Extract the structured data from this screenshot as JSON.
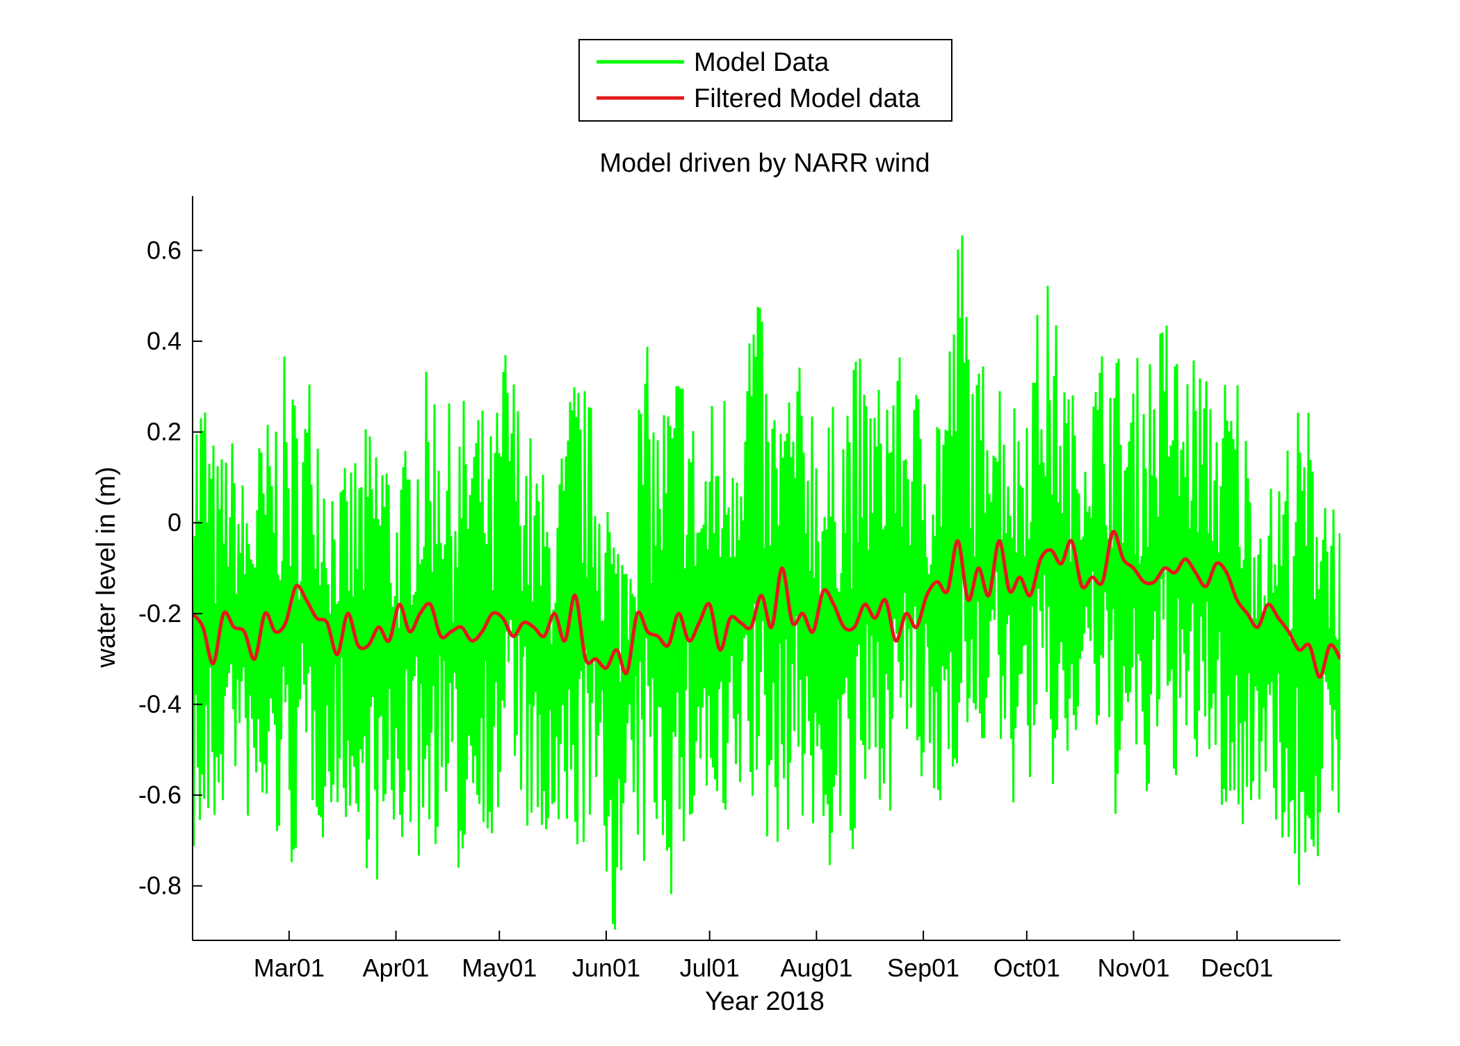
{
  "chart_data": {
    "type": "line",
    "title": "Model driven by NARR wind",
    "xlabel": "Year 2018",
    "ylabel": "water level in (m)",
    "xlim": [
      "2018-02-01",
      "2018-12-31"
    ],
    "ylim": [
      -0.92,
      0.72
    ],
    "grid": false,
    "legend_position": "top-center, above plot",
    "x_ticks": [
      {
        "date": "2018-03-01",
        "label": "Mar01"
      },
      {
        "date": "2018-04-01",
        "label": "Apr01"
      },
      {
        "date": "2018-05-01",
        "label": "May01"
      },
      {
        "date": "2018-06-01",
        "label": "Jun01"
      },
      {
        "date": "2018-07-01",
        "label": "Jul01"
      },
      {
        "date": "2018-08-01",
        "label": "Aug01"
      },
      {
        "date": "2018-09-01",
        "label": "Sep01"
      },
      {
        "date": "2018-10-01",
        "label": "Oct01"
      },
      {
        "date": "2018-11-01",
        "label": "Nov01"
      },
      {
        "date": "2018-12-01",
        "label": "Dec01"
      }
    ],
    "y_ticks": [
      {
        "value": 0.6,
        "label": "0.6"
      },
      {
        "value": 0.4,
        "label": "0.4"
      },
      {
        "value": 0.2,
        "label": "0.2"
      },
      {
        "value": 0,
        "label": "0"
      },
      {
        "value": -0.2,
        "label": "-0.2"
      },
      {
        "value": -0.4,
        "label": "-0.4"
      },
      {
        "value": -0.6,
        "label": "-0.6"
      },
      {
        "value": -0.8,
        "label": "-0.8"
      }
    ],
    "series": [
      {
        "name": "Model Data",
        "color": "#00ff00",
        "style": "oscillating envelope (approx. upper/lower extremes)",
        "x": [
          "2018-02-01",
          "2018-02-04",
          "2018-02-08",
          "2018-02-12",
          "2018-02-16",
          "2018-02-20",
          "2018-02-24",
          "2018-02-28",
          "2018-03-04",
          "2018-03-08",
          "2018-03-12",
          "2018-03-16",
          "2018-03-20",
          "2018-03-24",
          "2018-03-28",
          "2018-04-01",
          "2018-04-05",
          "2018-04-09",
          "2018-04-13",
          "2018-04-17",
          "2018-04-21",
          "2018-04-25",
          "2018-04-29",
          "2018-05-03",
          "2018-05-07",
          "2018-05-11",
          "2018-05-15",
          "2018-05-19",
          "2018-05-23",
          "2018-05-27",
          "2018-05-31",
          "2018-06-04",
          "2018-06-08",
          "2018-06-12",
          "2018-06-16",
          "2018-06-20",
          "2018-06-24",
          "2018-06-28",
          "2018-07-02",
          "2018-07-06",
          "2018-07-10",
          "2018-07-14",
          "2018-07-18",
          "2018-07-22",
          "2018-07-26",
          "2018-07-30",
          "2018-08-03",
          "2018-08-07",
          "2018-08-11",
          "2018-08-15",
          "2018-08-19",
          "2018-08-23",
          "2018-08-27",
          "2018-08-31",
          "2018-09-04",
          "2018-09-08",
          "2018-09-12",
          "2018-09-16",
          "2018-09-20",
          "2018-09-24",
          "2018-09-28",
          "2018-10-02",
          "2018-10-06",
          "2018-10-10",
          "2018-10-14",
          "2018-10-18",
          "2018-10-22",
          "2018-10-26",
          "2018-10-30",
          "2018-11-03",
          "2018-11-07",
          "2018-11-11",
          "2018-11-15",
          "2018-11-19",
          "2018-11-23",
          "2018-11-27",
          "2018-12-01",
          "2018-12-05",
          "2018-12-09",
          "2018-12-13",
          "2018-12-17",
          "2018-12-21",
          "2018-12-25",
          "2018-12-31"
        ],
        "upper": [
          0.3,
          0.37,
          0.15,
          0.21,
          0.1,
          0.2,
          0.26,
          0.38,
          0.28,
          0.39,
          0.2,
          0.1,
          0.18,
          0.22,
          0.28,
          0.1,
          0.21,
          0.33,
          0.36,
          0.25,
          0.29,
          0.29,
          0.2,
          0.44,
          0.27,
          0.19,
          0.09,
          0.18,
          0.38,
          0.28,
          0.23,
          0.0,
          0.12,
          0.43,
          0.26,
          0.35,
          0.42,
          0.13,
          0.3,
          0.34,
          0.38,
          0.61,
          0.31,
          0.32,
          0.35,
          0.36,
          0.25,
          0.27,
          0.39,
          0.36,
          0.32,
          0.43,
          0.31,
          0.32,
          0.33,
          0.39,
          0.72,
          0.32,
          0.42,
          0.36,
          0.29,
          0.4,
          0.57,
          0.45,
          0.3,
          0.25,
          0.4,
          0.44,
          0.31,
          0.39,
          0.42,
          0.49,
          0.36,
          0.4,
          0.31,
          0.34,
          0.37,
          0.16,
          0.06,
          0.13,
          0.25,
          0.28,
          0.22,
          0.02
        ],
        "lower": [
          -0.75,
          -0.8,
          -0.7,
          -0.55,
          -0.65,
          -0.77,
          -0.7,
          -0.82,
          -0.73,
          -0.65,
          -0.74,
          -0.6,
          -0.82,
          -0.75,
          -0.86,
          -0.74,
          -0.7,
          -0.8,
          -0.7,
          -0.81,
          -0.78,
          -0.62,
          -0.8,
          -0.55,
          -0.62,
          -0.82,
          -0.75,
          -0.84,
          -0.76,
          -0.7,
          -0.84,
          -0.93,
          -0.73,
          -0.8,
          -0.7,
          -0.85,
          -0.78,
          -0.6,
          -0.75,
          -0.83,
          -0.62,
          -0.69,
          -0.75,
          -0.71,
          -0.64,
          -0.72,
          -0.83,
          -0.7,
          -0.82,
          -0.7,
          -0.61,
          -0.65,
          -0.52,
          -0.62,
          -0.76,
          -0.55,
          -0.55,
          -0.6,
          -0.44,
          -0.58,
          -0.65,
          -0.58,
          -0.64,
          -0.6,
          -0.57,
          -0.35,
          -0.55,
          -0.67,
          -0.55,
          -0.69,
          -0.62,
          -0.52,
          -0.63,
          -0.59,
          -0.55,
          -0.67,
          -0.76,
          -0.68,
          -0.56,
          -0.69,
          -0.88,
          -0.8,
          -0.75,
          -0.66
        ]
      },
      {
        "name": "Filtered Model data",
        "color": "#e31a1c",
        "x": [
          "2018-02-01",
          "2018-02-04",
          "2018-02-07",
          "2018-02-10",
          "2018-02-13",
          "2018-02-16",
          "2018-02-19",
          "2018-02-22",
          "2018-02-25",
          "2018-02-28",
          "2018-03-03",
          "2018-03-06",
          "2018-03-09",
          "2018-03-12",
          "2018-03-15",
          "2018-03-18",
          "2018-03-21",
          "2018-03-24",
          "2018-03-27",
          "2018-03-30",
          "2018-04-02",
          "2018-04-05",
          "2018-04-08",
          "2018-04-11",
          "2018-04-14",
          "2018-04-17",
          "2018-04-20",
          "2018-04-23",
          "2018-04-26",
          "2018-04-29",
          "2018-05-02",
          "2018-05-05",
          "2018-05-08",
          "2018-05-11",
          "2018-05-14",
          "2018-05-17",
          "2018-05-20",
          "2018-05-23",
          "2018-05-26",
          "2018-05-29",
          "2018-06-01",
          "2018-06-04",
          "2018-06-07",
          "2018-06-10",
          "2018-06-13",
          "2018-06-16",
          "2018-06-19",
          "2018-06-22",
          "2018-06-25",
          "2018-06-28",
          "2018-07-01",
          "2018-07-04",
          "2018-07-07",
          "2018-07-10",
          "2018-07-13",
          "2018-07-16",
          "2018-07-19",
          "2018-07-22",
          "2018-07-25",
          "2018-07-28",
          "2018-07-31",
          "2018-08-03",
          "2018-08-06",
          "2018-08-09",
          "2018-08-12",
          "2018-08-15",
          "2018-08-18",
          "2018-08-21",
          "2018-08-24",
          "2018-08-27",
          "2018-08-30",
          "2018-09-02",
          "2018-09-05",
          "2018-09-08",
          "2018-09-11",
          "2018-09-14",
          "2018-09-17",
          "2018-09-20",
          "2018-09-23",
          "2018-09-26",
          "2018-09-29",
          "2018-10-02",
          "2018-10-05",
          "2018-10-08",
          "2018-10-11",
          "2018-10-14",
          "2018-10-17",
          "2018-10-20",
          "2018-10-23",
          "2018-10-26",
          "2018-10-29",
          "2018-11-01",
          "2018-11-04",
          "2018-11-07",
          "2018-11-10",
          "2018-11-13",
          "2018-11-16",
          "2018-11-19",
          "2018-11-22",
          "2018-11-25",
          "2018-11-28",
          "2018-12-01",
          "2018-12-04",
          "2018-12-07",
          "2018-12-10",
          "2018-12-13",
          "2018-12-16",
          "2018-12-19",
          "2018-12-22",
          "2018-12-25",
          "2018-12-28",
          "2018-12-31"
        ],
        "values": [
          -0.2,
          -0.23,
          -0.31,
          -0.2,
          -0.23,
          -0.24,
          -0.3,
          -0.2,
          -0.24,
          -0.22,
          -0.14,
          -0.17,
          -0.21,
          -0.22,
          -0.29,
          -0.2,
          -0.27,
          -0.27,
          -0.23,
          -0.26,
          -0.18,
          -0.24,
          -0.2,
          -0.18,
          -0.25,
          -0.24,
          -0.23,
          -0.26,
          -0.24,
          -0.2,
          -0.21,
          -0.25,
          -0.22,
          -0.23,
          -0.25,
          -0.2,
          -0.26,
          -0.16,
          -0.3,
          -0.3,
          -0.32,
          -0.28,
          -0.33,
          -0.2,
          -0.24,
          -0.25,
          -0.27,
          -0.2,
          -0.26,
          -0.22,
          -0.18,
          -0.28,
          -0.21,
          -0.22,
          -0.23,
          -0.16,
          -0.23,
          -0.1,
          -0.22,
          -0.2,
          -0.24,
          -0.15,
          -0.18,
          -0.23,
          -0.23,
          -0.18,
          -0.21,
          -0.17,
          -0.26,
          -0.2,
          -0.23,
          -0.16,
          -0.13,
          -0.15,
          -0.04,
          -0.17,
          -0.1,
          -0.16,
          -0.04,
          -0.15,
          -0.12,
          -0.16,
          -0.08,
          -0.06,
          -0.09,
          -0.04,
          -0.14,
          -0.12,
          -0.13,
          -0.02,
          -0.08,
          -0.1,
          -0.13,
          -0.13,
          -0.1,
          -0.11,
          -0.08,
          -0.11,
          -0.14,
          -0.09,
          -0.11,
          -0.17,
          -0.2,
          -0.23,
          -0.18,
          -0.21,
          -0.24,
          -0.28,
          -0.27,
          -0.34,
          -0.27,
          -0.3
        ]
      }
    ]
  }
}
